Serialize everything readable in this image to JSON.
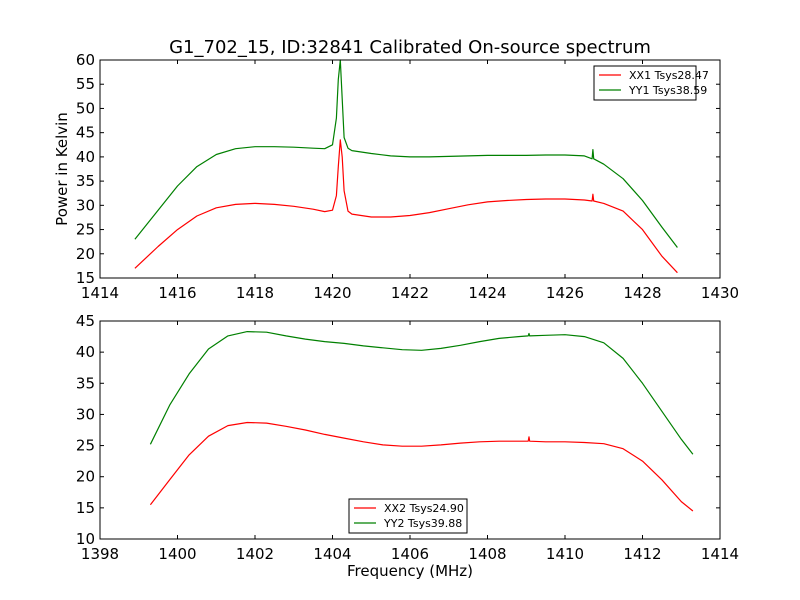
{
  "chart_data": [
    {
      "type": "line",
      "title": "G1_702_15, ID:32841 Calibrated On-source spectrum",
      "xlabel": "",
      "ylabel": "Power in Kelvin",
      "xlim": [
        1414,
        1430
      ],
      "ylim": [
        15,
        60
      ],
      "xticks": [
        1414,
        1416,
        1418,
        1420,
        1422,
        1424,
        1426,
        1428,
        1430
      ],
      "yticks": [
        15,
        20,
        25,
        30,
        35,
        40,
        45,
        50,
        55,
        60
      ],
      "legend_position": "top-right",
      "series": [
        {
          "name": "XX1 Tsys28.47",
          "color": "#ff0000",
          "x": [
            1414.9,
            1415.5,
            1416.0,
            1416.5,
            1417.0,
            1417.5,
            1418.0,
            1418.5,
            1419.0,
            1419.5,
            1419.8,
            1420.0,
            1420.1,
            1420.15,
            1420.2,
            1420.25,
            1420.3,
            1420.4,
            1420.5,
            1421.0,
            1421.5,
            1422.0,
            1422.5,
            1423.0,
            1423.5,
            1424.0,
            1424.5,
            1425.0,
            1425.5,
            1426.0,
            1426.5,
            1426.7,
            1426.72,
            1426.74,
            1427.0,
            1427.5,
            1428.0,
            1428.5,
            1428.9
          ],
          "y": [
            17.0,
            21.5,
            25.0,
            27.8,
            29.5,
            30.2,
            30.4,
            30.2,
            29.8,
            29.2,
            28.7,
            29.0,
            32.0,
            38.0,
            43.5,
            40.0,
            33.0,
            28.8,
            28.2,
            27.6,
            27.6,
            27.9,
            28.5,
            29.3,
            30.1,
            30.7,
            31.0,
            31.2,
            31.3,
            31.3,
            31.1,
            30.9,
            32.3,
            30.9,
            30.4,
            28.8,
            25.0,
            19.5,
            16.1
          ]
        },
        {
          "name": "YY1 Tsys38.59",
          "color": "#008000",
          "x": [
            1414.9,
            1415.5,
            1416.0,
            1416.5,
            1417.0,
            1417.5,
            1418.0,
            1418.5,
            1419.0,
            1419.5,
            1419.8,
            1420.0,
            1420.1,
            1420.15,
            1420.2,
            1420.25,
            1420.3,
            1420.4,
            1420.5,
            1421.0,
            1421.5,
            1422.0,
            1422.5,
            1423.0,
            1423.5,
            1424.0,
            1424.5,
            1425.0,
            1425.5,
            1426.0,
            1426.5,
            1426.7,
            1426.72,
            1426.74,
            1427.0,
            1427.5,
            1428.0,
            1428.5,
            1428.9
          ],
          "y": [
            23.0,
            29.0,
            34.0,
            38.0,
            40.5,
            41.7,
            42.1,
            42.1,
            42.0,
            41.8,
            41.7,
            42.5,
            48.0,
            56.0,
            60.0,
            52.0,
            44.0,
            41.8,
            41.3,
            40.7,
            40.2,
            40.0,
            40.0,
            40.1,
            40.2,
            40.3,
            40.3,
            40.3,
            40.4,
            40.4,
            40.2,
            39.6,
            41.5,
            39.6,
            38.5,
            35.5,
            31.0,
            25.5,
            21.3
          ]
        }
      ]
    },
    {
      "type": "line",
      "title": "",
      "xlabel": "Frequency (MHz)",
      "ylabel": "",
      "xlim": [
        1398,
        1414
      ],
      "ylim": [
        10,
        45
      ],
      "xticks": [
        1398,
        1400,
        1402,
        1404,
        1406,
        1408,
        1410,
        1412,
        1414
      ],
      "yticks": [
        10,
        15,
        20,
        25,
        30,
        35,
        40,
        45
      ],
      "legend_position": "bottom-center",
      "series": [
        {
          "name": "XX2 Tsys24.90",
          "color": "#ff0000",
          "x": [
            1399.3,
            1399.8,
            1400.3,
            1400.8,
            1401.3,
            1401.8,
            1402.3,
            1402.8,
            1403.3,
            1403.8,
            1404.3,
            1404.8,
            1405.3,
            1405.8,
            1406.3,
            1406.8,
            1407.3,
            1407.8,
            1408.3,
            1408.8,
            1409.05,
            1409.07,
            1409.09,
            1409.5,
            1410.0,
            1410.5,
            1411.0,
            1411.5,
            1412.0,
            1412.5,
            1413.0,
            1413.3
          ],
          "y": [
            15.5,
            19.5,
            23.5,
            26.5,
            28.2,
            28.7,
            28.6,
            28.1,
            27.5,
            26.8,
            26.2,
            25.6,
            25.1,
            24.9,
            24.9,
            25.1,
            25.4,
            25.6,
            25.7,
            25.7,
            25.7,
            26.4,
            25.7,
            25.6,
            25.6,
            25.5,
            25.3,
            24.5,
            22.5,
            19.5,
            16.0,
            14.5
          ]
        },
        {
          "name": "YY2 Tsys39.88",
          "color": "#008000",
          "x": [
            1399.3,
            1399.8,
            1400.3,
            1400.8,
            1401.3,
            1401.8,
            1402.3,
            1402.8,
            1403.3,
            1403.8,
            1404.3,
            1404.8,
            1405.3,
            1405.8,
            1406.3,
            1406.8,
            1407.3,
            1407.8,
            1408.3,
            1408.8,
            1409.05,
            1409.07,
            1409.09,
            1409.5,
            1410.0,
            1410.5,
            1411.0,
            1411.5,
            1412.0,
            1412.5,
            1413.0,
            1413.3
          ],
          "y": [
            25.2,
            31.5,
            36.5,
            40.5,
            42.6,
            43.3,
            43.2,
            42.6,
            42.1,
            41.7,
            41.4,
            41.0,
            40.7,
            40.4,
            40.3,
            40.6,
            41.1,
            41.7,
            42.2,
            42.5,
            42.6,
            43.0,
            42.6,
            42.7,
            42.8,
            42.5,
            41.5,
            39.0,
            35.0,
            30.5,
            26.0,
            23.6
          ]
        }
      ]
    }
  ]
}
